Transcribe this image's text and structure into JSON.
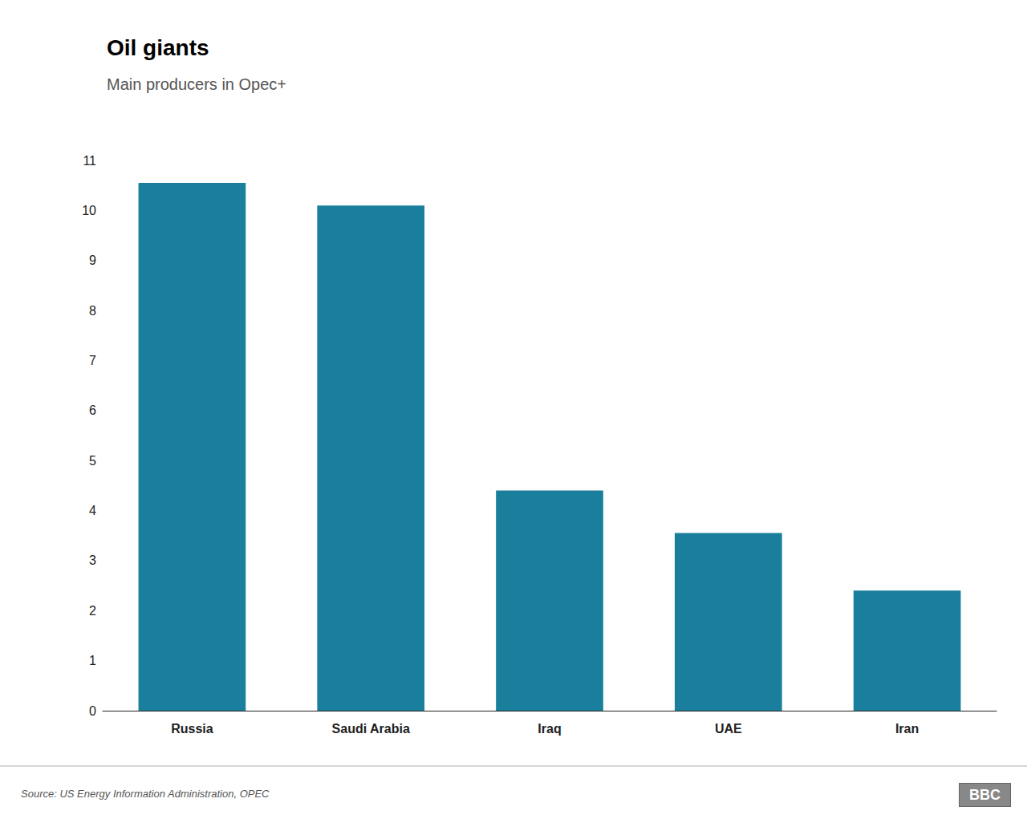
{
  "chart_data": {
    "type": "bar",
    "title": "Oil giants",
    "subtitle": "Main producers in Opec+",
    "categories": [
      "Russia",
      "Saudi Arabia",
      "Iraq",
      "UAE",
      "Iran"
    ],
    "values": [
      10.55,
      10.1,
      4.4,
      3.55,
      2.4
    ],
    "color": "#1a7f9c",
    "ylim": [
      0,
      11
    ],
    "yticks": [
      0,
      1,
      2,
      3,
      4,
      5,
      6,
      7,
      8,
      9,
      10,
      11
    ],
    "grid": false,
    "annotations": [
      "Source: US Energy Information Administration, OPEC",
      "BBC"
    ]
  }
}
